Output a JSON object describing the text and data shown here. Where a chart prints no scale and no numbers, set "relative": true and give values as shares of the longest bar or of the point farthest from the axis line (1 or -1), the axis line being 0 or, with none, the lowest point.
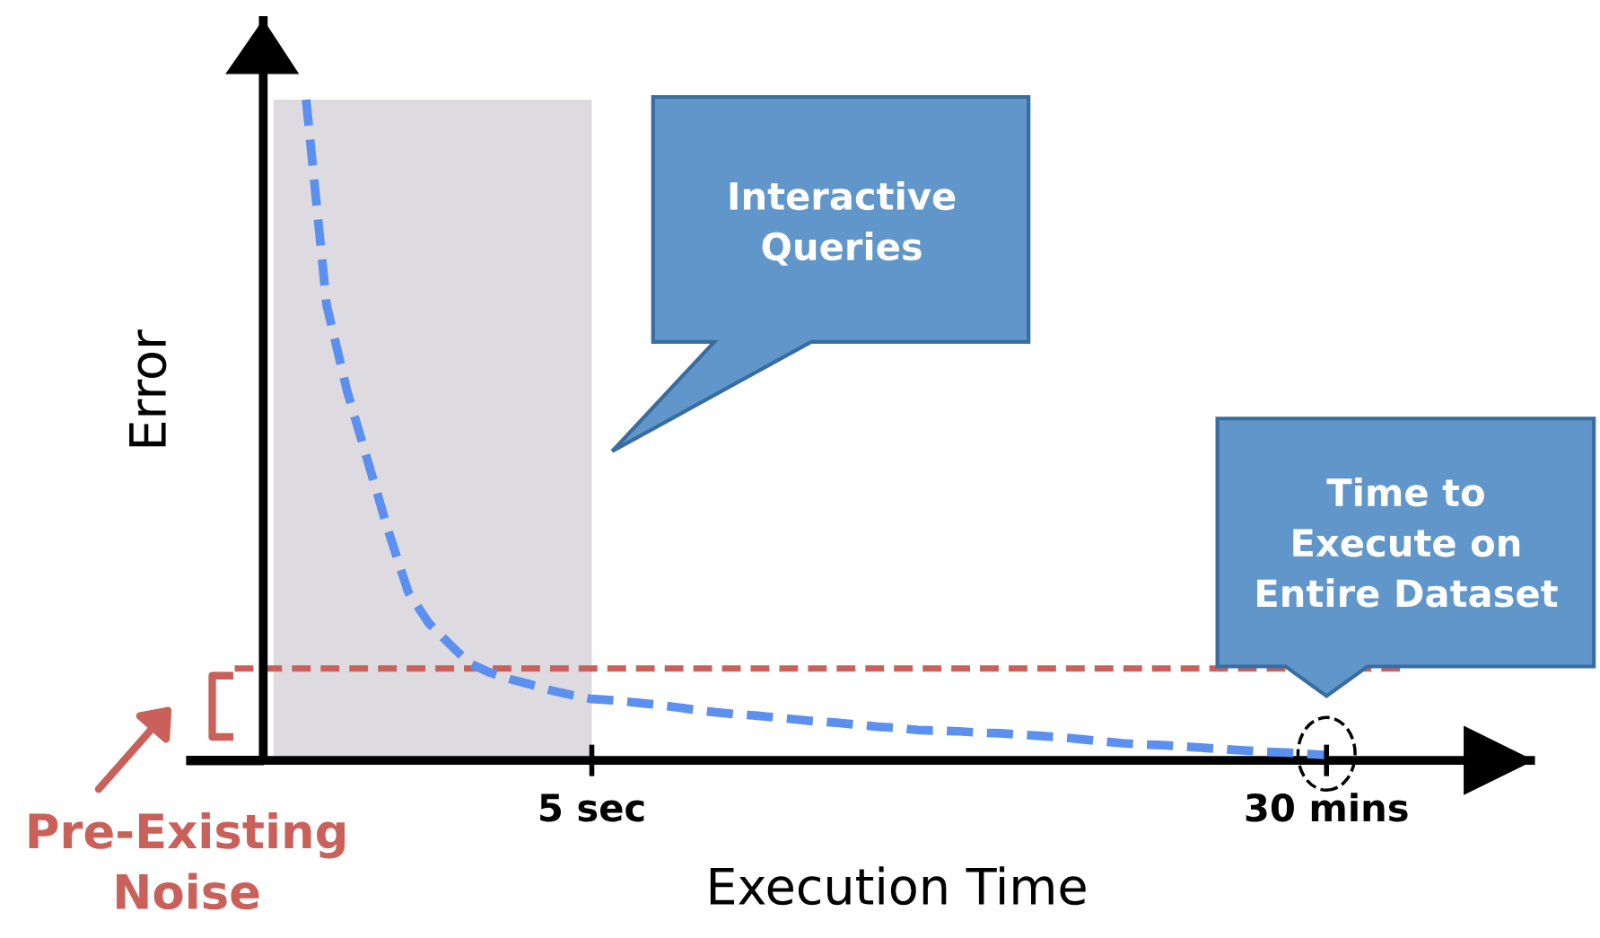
{
  "chart_data": {
    "type": "line",
    "relative": true,
    "xlabel": "Execution Time",
    "ylabel": "Error",
    "categories": [
      null,
      null,
      null,
      null,
      null,
      null,
      null,
      null,
      null,
      null,
      null,
      null,
      null,
      null,
      null,
      null,
      "5 sec",
      null,
      null,
      null,
      null,
      null,
      null,
      null,
      null,
      null,
      null,
      null,
      null,
      null,
      null,
      null,
      null,
      null,
      null,
      null,
      null,
      null,
      null,
      null,
      null,
      null,
      null,
      null,
      null,
      null,
      null,
      null,
      null,
      null,
      null,
      null,
      "30 mins"
    ],
    "series": [
      {
        "color": "#5b8ff0",
        "values": [
          null,
          null,
          1.0,
          0.69,
          0.56,
          0.455,
          0.35,
          0.255,
          0.208,
          0.177,
          0.147,
          0.133,
          0.123,
          0.115,
          0.106,
          0.099,
          0.093,
          0.091,
          0.088,
          0.085,
          0.081,
          0.077,
          0.073,
          0.07,
          0.068,
          0.065,
          0.062,
          0.059,
          0.057,
          0.054,
          0.051,
          0.049,
          0.046,
          0.045,
          0.044,
          0.042,
          0.041,
          0.039,
          0.037,
          0.035,
          0.032,
          0.029,
          0.026,
          0.024,
          0.023,
          0.021,
          0.019,
          0.017,
          0.015,
          0.013,
          0.012,
          0.01,
          0.008
        ]
      }
    ],
    "line_style": "dashed",
    "marker": "none",
    "grid": false,
    "legend": false,
    "ref_lines": [
      {
        "axis": "y",
        "value": 0.139,
        "color": "#c9615a",
        "line_style": "dashed"
      }
    ],
    "annotations": [
      "Interactive Queries",
      "Time to Execute on Entire Dataset",
      "Pre-Existing Noise"
    ]
  }
}
